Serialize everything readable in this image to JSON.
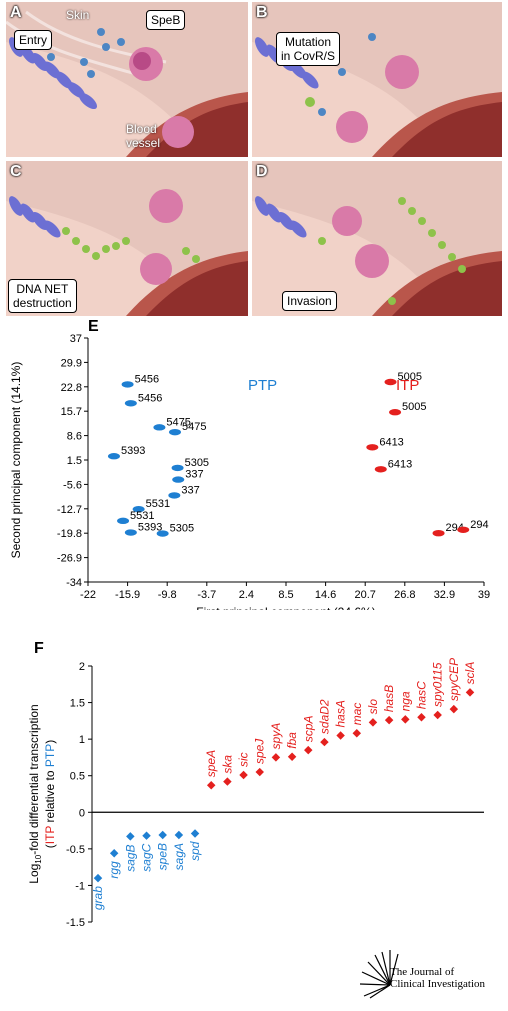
{
  "panels": {
    "A": {
      "label": "A",
      "callouts": [
        "Entry",
        "SpeB"
      ],
      "annotations": [
        "Skin",
        "Blood\nvessel"
      ]
    },
    "B": {
      "label": "B",
      "callouts": [
        "Mutation\nin CovR/S"
      ]
    },
    "C": {
      "label": "C",
      "callouts": [
        "DNA NET\ndestruction"
      ]
    },
    "D": {
      "label": "D",
      "callouts": [
        "Invasion"
      ]
    }
  },
  "panelE": {
    "label": "E",
    "chart_data": {
      "type": "scatter",
      "xlabel": "First principal component (24.6%)",
      "ylabel": "Second principal component (14.1%)",
      "xlim": [
        -22,
        39
      ],
      "ylim": [
        -34,
        37
      ],
      "xticks": [
        "-22",
        "-15.9",
        "-9.8",
        "-3.7",
        "2.4",
        "8.5",
        "14.6",
        "20.7",
        "26.8",
        "32.9",
        "39"
      ],
      "yticks": [
        "37",
        "29.9",
        "22.8",
        "15.7",
        "8.6",
        "1.5",
        "-5.6",
        "-12.7",
        "-19.8",
        "-26.9",
        "-34"
      ],
      "series": [
        {
          "name": "PTP",
          "color": "#1e7fd2",
          "points": [
            {
              "x": -15.9,
              "y": 23.5,
              "label": "5456"
            },
            {
              "x": -15.4,
              "y": 18.0,
              "label": "5456"
            },
            {
              "x": -11.0,
              "y": 11.0,
              "label": "5475"
            },
            {
              "x": -8.6,
              "y": 9.6,
              "label": "5475"
            },
            {
              "x": -18.0,
              "y": 2.6,
              "label": "5393"
            },
            {
              "x": -8.2,
              "y": -0.8,
              "label": "5305"
            },
            {
              "x": -8.1,
              "y": -4.2,
              "label": "337"
            },
            {
              "x": -8.7,
              "y": -8.8,
              "label": "337"
            },
            {
              "x": -14.2,
              "y": -12.8,
              "label": "5531"
            },
            {
              "x": -16.6,
              "y": -16.2,
              "label": "5531"
            },
            {
              "x": -15.4,
              "y": -19.6,
              "label": "5393"
            },
            {
              "x": -10.5,
              "y": -19.9,
              "label": "5305"
            }
          ]
        },
        {
          "name": "ITP",
          "color": "#e4201e",
          "points": [
            {
              "x": 24.6,
              "y": 24.2,
              "label": "5005"
            },
            {
              "x": 25.3,
              "y": 15.4,
              "label": "5005"
            },
            {
              "x": 21.8,
              "y": 5.2,
              "label": "6413"
            },
            {
              "x": 23.1,
              "y": -1.2,
              "label": "6413"
            },
            {
              "x": 32.0,
              "y": -19.8,
              "label": "294"
            },
            {
              "x": 35.8,
              "y": -18.8,
              "label": "294"
            }
          ]
        }
      ]
    }
  },
  "panelF": {
    "label": "F",
    "chart_data": {
      "type": "scatter",
      "ylabel_parts": [
        "Log",
        "10",
        "-fold differential transcription",
        "(",
        "ITP",
        " relative to ",
        "PTP",
        ")"
      ],
      "ylim": [
        -1.5,
        2
      ],
      "yticks": [
        "2",
        "1.5",
        "1",
        "0.5",
        "0",
        "-0.5",
        "-1",
        "-1.5"
      ],
      "up_color": "#e4201e",
      "down_color": "#1e7fd2",
      "genes": [
        {
          "name": "grab",
          "value": -0.9
        },
        {
          "name": "rgg",
          "value": -0.56
        },
        {
          "name": "sagB",
          "value": -0.33
        },
        {
          "name": "sagC",
          "value": -0.32
        },
        {
          "name": "speB",
          "value": -0.31
        },
        {
          "name": "sagA",
          "value": -0.31
        },
        {
          "name": "spd",
          "value": -0.29
        },
        {
          "name": "speA",
          "value": 0.37
        },
        {
          "name": "ska",
          "value": 0.42
        },
        {
          "name": "sic",
          "value": 0.51
        },
        {
          "name": "speJ",
          "value": 0.55
        },
        {
          "name": "spyA",
          "value": 0.75
        },
        {
          "name": "fba",
          "value": 0.76
        },
        {
          "name": "scpA",
          "value": 0.85
        },
        {
          "name": "sdaD2",
          "value": 0.96
        },
        {
          "name": "hasA",
          "value": 1.05
        },
        {
          "name": "mac",
          "value": 1.08
        },
        {
          "name": "slo",
          "value": 1.23
        },
        {
          "name": "hasB",
          "value": 1.26
        },
        {
          "name": "nga",
          "value": 1.27
        },
        {
          "name": "hasC",
          "value": 1.3
        },
        {
          "name": "spy0115",
          "value": 1.33
        },
        {
          "name": "spyCEP",
          "value": 1.41
        },
        {
          "name": "sclA",
          "value": 1.64
        }
      ]
    }
  },
  "journal": {
    "line1": "The Journal of",
    "line2": "Clinical Investigation"
  }
}
